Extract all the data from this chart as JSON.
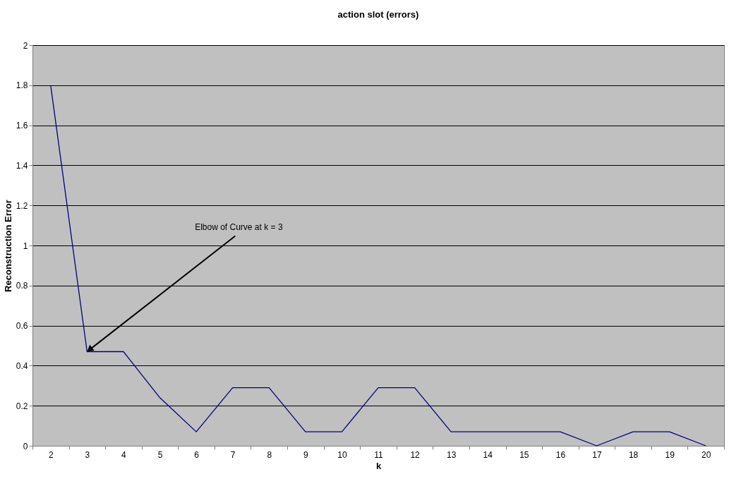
{
  "chart_data": {
    "type": "line",
    "title": "action slot (errors)",
    "xlabel": "k",
    "ylabel": "Reconstruction Error",
    "categories": [
      "2",
      "3",
      "4",
      "5",
      "6",
      "7",
      "8",
      "9",
      "10",
      "11",
      "12",
      "13",
      "14",
      "15",
      "16",
      "17",
      "18",
      "19",
      "20"
    ],
    "series": [
      {
        "color": "#000080",
        "values": [
          1.8,
          0.47,
          0.47,
          0.24,
          0.07,
          0.29,
          0.29,
          0.07,
          0.07,
          0.29,
          0.29,
          0.07,
          0.07,
          0.07,
          0.07,
          0,
          0.07,
          0.07,
          0
        ]
      }
    ],
    "ylim": [
      0,
      2
    ],
    "yticks": [
      0,
      0.2,
      0.4,
      0.6,
      0.8,
      1,
      1.2,
      1.4,
      1.6,
      1.8,
      2
    ],
    "grid": "y",
    "marker": "none",
    "line_style": "solid",
    "annotations": [
      {
        "text": "Elbow of Curve at k = 3",
        "x": "3",
        "y": 0.47
      }
    ]
  }
}
